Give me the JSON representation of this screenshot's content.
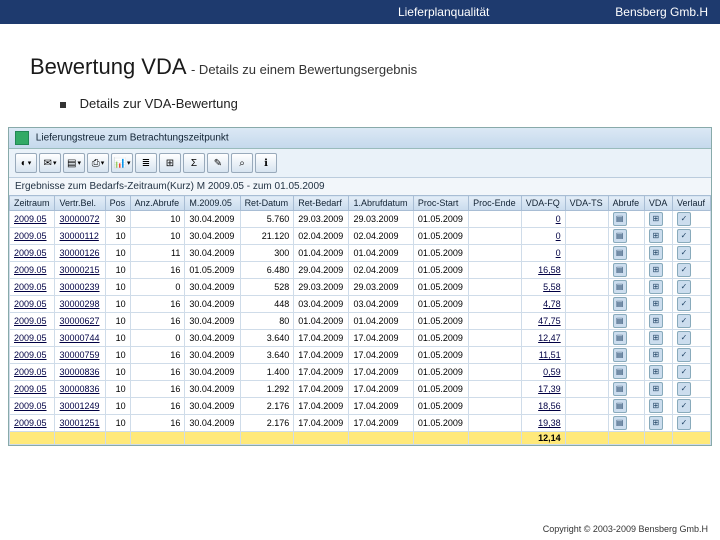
{
  "header": {
    "left": "Lieferplanqualität",
    "right": "Bensberg Gmb.H"
  },
  "title": {
    "main": "Bewertung VDA",
    "sub": "- Details zu einem Bewertungsergebnis"
  },
  "bullet": "Details zur VDA-Bewertung",
  "sap": {
    "winTitle": "Lieferungstreue zum Betrachtungszeitpunkt",
    "caption": "Ergebnisse zum Bedarfs-Zeitraum(Kurz) M 2009.05 - zum 01.05.2009",
    "toolbar": [
      "◐",
      "✉",
      "▤",
      "⎙",
      "📊",
      "≣",
      "⊞",
      "Σ",
      "✎",
      "⌕",
      "ℹ"
    ],
    "columns": [
      "Zeitraum",
      "Vertr.Bel.",
      "Pos",
      "Anz.Abrufe",
      "M.2009.05",
      "Ret-Datum",
      "Ret-Bedarf",
      "1.Abrufdatum",
      "Proc-Start",
      "Proc-Ende",
      "VDA-FQ",
      "VDA-TS",
      "Abrufe",
      "VDA",
      "Verlauf"
    ],
    "rows": [
      [
        "2009.05",
        "30000072",
        "30",
        "10",
        "30.04.2009",
        "5.760",
        "29.03.2009",
        "29.03.2009",
        "01.05.2009",
        "",
        "0"
      ],
      [
        "2009.05",
        "30000112",
        "10",
        "10",
        "30.04.2009",
        "21.120",
        "02.04.2009",
        "02.04.2009",
        "01.05.2009",
        "",
        "0"
      ],
      [
        "2009.05",
        "30000126",
        "10",
        "11",
        "30.04.2009",
        "300",
        "01.04.2009",
        "01.04.2009",
        "01.05.2009",
        "",
        "0"
      ],
      [
        "2009.05",
        "30000215",
        "10",
        "16",
        "01.05.2009",
        "6.480",
        "29.04.2009",
        "02.04.2009",
        "01.05.2009",
        "",
        "16,58"
      ],
      [
        "2009.05",
        "30000239",
        "10",
        "0",
        "30.04.2009",
        "528",
        "29.03.2009",
        "29.03.2009",
        "01.05.2009",
        "",
        "5,58"
      ],
      [
        "2009.05",
        "30000298",
        "10",
        "16",
        "30.04.2009",
        "448",
        "03.04.2009",
        "03.04.2009",
        "01.05.2009",
        "",
        "4,78"
      ],
      [
        "2009.05",
        "30000627",
        "10",
        "16",
        "30.04.2009",
        "80",
        "01.04.2009",
        "01.04.2009",
        "01.05.2009",
        "",
        "47,75"
      ],
      [
        "2009.05",
        "30000744",
        "10",
        "0",
        "30.04.2009",
        "3.640",
        "17.04.2009",
        "17.04.2009",
        "01.05.2009",
        "",
        "12,47"
      ],
      [
        "2009.05",
        "30000759",
        "10",
        "16",
        "30.04.2009",
        "3.640",
        "17.04.2009",
        "17.04.2009",
        "01.05.2009",
        "",
        "11,51"
      ],
      [
        "2009.05",
        "30000836",
        "10",
        "16",
        "30.04.2009",
        "1.400",
        "17.04.2009",
        "17.04.2009",
        "01.05.2009",
        "",
        "0,59"
      ],
      [
        "2009.05",
        "30000836",
        "10",
        "16",
        "30.04.2009",
        "1.292",
        "17.04.2009",
        "17.04.2009",
        "01.05.2009",
        "",
        "17,39"
      ],
      [
        "2009.05",
        "30001249",
        "10",
        "16",
        "30.04.2009",
        "2.176",
        "17.04.2009",
        "17.04.2009",
        "01.05.2009",
        "",
        "18,56"
      ],
      [
        "2009.05",
        "30001251",
        "10",
        "16",
        "30.04.2009",
        "2.176",
        "17.04.2009",
        "17.04.2009",
        "01.05.2009",
        "",
        "19,38"
      ]
    ],
    "totalRow": {
      "vdats": "12,14"
    }
  },
  "footer": "Copyright © 2003-2009 Bensberg Gmb.H"
}
